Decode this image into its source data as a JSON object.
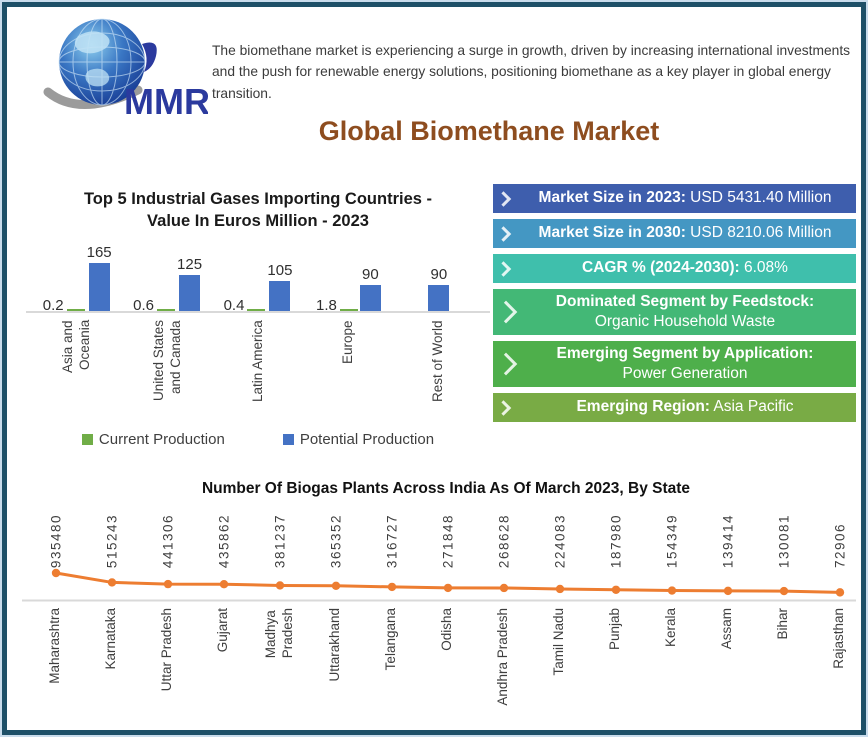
{
  "logo": {
    "text": "MMR"
  },
  "header": {
    "description": "The biomethane market is experiencing a surge in growth, driven by increasing international investments and the push for renewable energy solutions, positioning biomethane as a key player in global energy transition.",
    "title": "Global Biomethane Market",
    "title_color": "#8E4D1F"
  },
  "banners": [
    {
      "label": "Market Size in 2023:",
      "value": " USD 5431.40 Million",
      "color": "#3E5EAD",
      "two_line": false
    },
    {
      "label": "Market Size in 2030:",
      "value": " USD 8210.06 Million",
      "color": "#4497C3",
      "two_line": false
    },
    {
      "label": "CAGR % (2024-2030):",
      "value": " 6.08%",
      "color": "#3FBFAC",
      "two_line": false
    },
    {
      "label": "Dominated Segment by Feedstock:",
      "value": "Organic Household Waste",
      "color": "#43B876",
      "two_line": true
    },
    {
      "label": "Emerging Segment by Application:",
      "value": "Power Generation",
      "color": "#4EAF4B",
      "two_line": true
    },
    {
      "label": "Emerging Region:",
      "value": " Asia Pacific",
      "color": "#79AB45",
      "two_line": false
    }
  ],
  "chart_data": [
    {
      "type": "bar",
      "title": "Top 5 Industrial Gases Importing Countries - Value In Euros Million - 2023",
      "title_display": "Top 5 Industrial Gases Importing Countries -\nValue In Euros Million - 2023",
      "categories": [
        "Asia and Oceania",
        "United States and Canada",
        "Latin America",
        "Europe",
        "Rest of World"
      ],
      "categories_display": [
        "Asia and\nOceania",
        "United States\nand Canada",
        "Latin America",
        "Europe",
        "Rest of World"
      ],
      "series": [
        {
          "name": "Current Production",
          "color": "#70AD47",
          "values": [
            0.2,
            0.6,
            0.4,
            1.8,
            null
          ]
        },
        {
          "name": "Potential Production",
          "color": "#4472C4",
          "values": [
            165,
            125,
            105,
            90,
            90
          ]
        }
      ],
      "ylim": [
        0,
        180
      ],
      "grid": false,
      "legend_position": "bottom"
    },
    {
      "type": "line",
      "title": "Number Of Biogas Plants Across India As Of March 2023, By State",
      "categories": [
        "Maharashtra",
        "Karnataka",
        "Uttar Pradesh",
        "Gujarat",
        "Madhya Pradesh",
        "Uttarakhand",
        "Telangana",
        "Odisha",
        "Andhra Pradesh",
        "Tamil Nadu",
        "Punjab",
        "Kerala",
        "Assam",
        "Bihar",
        "Rajasthan"
      ],
      "categories_display": [
        "Maharashtra",
        "Karnataka",
        "Uttar Pradesh",
        "Gujarat",
        "Madhya\nPradesh",
        "Uttarakhand",
        "Telangana",
        "Odisha",
        "Andhra Pradesh",
        "Tamil Nadu",
        "Punjab",
        "Kerala",
        "Assam",
        "Bihar",
        "Rajasthan"
      ],
      "series": [
        {
          "name": "Number of Biogas Plants",
          "color": "#ED7D31",
          "values": [
            935480,
            515243,
            441306,
            435862,
            381237,
            365352,
            316727,
            271848,
            268628,
            224083,
            187980,
            154349,
            139414,
            130081,
            72906
          ]
        }
      ],
      "grid": false,
      "legend_position": "bottom"
    }
  ]
}
